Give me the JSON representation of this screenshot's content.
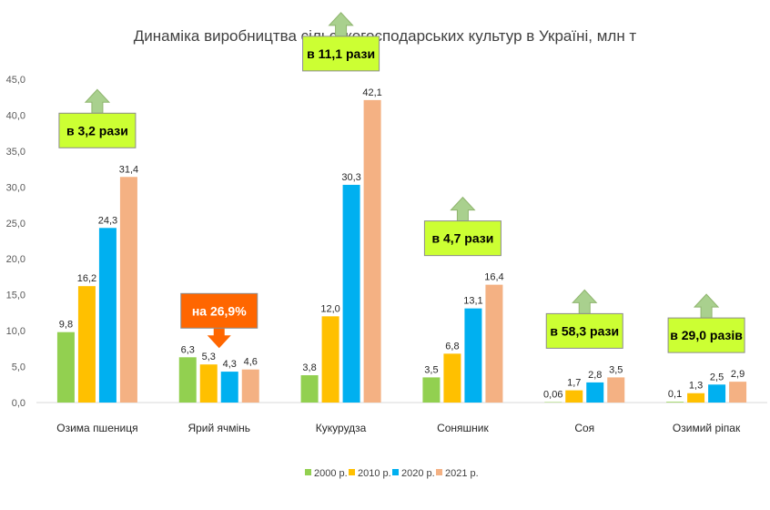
{
  "chart_data": {
    "type": "bar",
    "title": "Динаміка виробництва сільськогосподарських  культур в Україні, млн т",
    "categories": [
      "Озима пшениця",
      "Ярий ячмінь",
      "Кукурудза",
      "Соняшник",
      "Соя",
      "Озимий ріпак"
    ],
    "series": [
      {
        "name": "2000 р.",
        "color": "#92d050",
        "values": [
          9.8,
          6.3,
          3.8,
          3.5,
          0.06,
          0.1
        ],
        "labels": [
          "9,8",
          "6,3",
          "3,8",
          "3,5",
          "0,06",
          "0,1"
        ]
      },
      {
        "name": "2010 р.",
        "color": "#ffc000",
        "values": [
          16.2,
          5.3,
          12.0,
          6.8,
          1.7,
          1.3
        ],
        "labels": [
          "16,2",
          "5,3",
          "12,0",
          "6,8",
          "1,7",
          "1,3"
        ]
      },
      {
        "name": "2020 р.",
        "color": "#00b0f0",
        "values": [
          24.3,
          4.3,
          30.3,
          13.1,
          2.8,
          2.5
        ],
        "labels": [
          "24,3",
          "4,3",
          "30,3",
          "13,1",
          "2,8",
          "2,5"
        ]
      },
      {
        "name": "2021 р.",
        "color": "#f4b183",
        "values": [
          31.4,
          4.6,
          42.1,
          16.4,
          3.5,
          2.9
        ],
        "labels": [
          "31,4",
          "4,6",
          "42,1",
          "16,4",
          "3,5",
          "2,9"
        ]
      }
    ],
    "ylim": [
      0,
      45
    ],
    "yticks": [
      "0,0",
      "5,0",
      "10,0",
      "15,0",
      "20,0",
      "25,0",
      "30,0",
      "35,0",
      "40,0",
      "45,0"
    ],
    "grid": false,
    "legend": "bottom",
    "annotations": [
      {
        "text": "в 3,2 рази",
        "category": 0,
        "direction": "up",
        "fill": "#ccff33",
        "arrow": "#a9d08e",
        "color": "#000000"
      },
      {
        "text": "на 26,9%",
        "category": 1,
        "direction": "down",
        "fill": "#ff6600",
        "arrow": "#ff6600",
        "color": "#ffffff"
      },
      {
        "text": "в 11,1 рази",
        "category": 2,
        "direction": "up",
        "fill": "#ccff33",
        "arrow": "#a9d08e",
        "color": "#000000"
      },
      {
        "text": "в 4,7 рази",
        "category": 3,
        "direction": "up",
        "fill": "#ccff33",
        "arrow": "#a9d08e",
        "color": "#000000"
      },
      {
        "text": "в 58,3 рази",
        "category": 4,
        "direction": "up",
        "fill": "#ccff33",
        "arrow": "#a9d08e",
        "color": "#000000"
      },
      {
        "text": "в 29,0 разів",
        "category": 5,
        "direction": "up",
        "fill": "#ccff33",
        "arrow": "#a9d08e",
        "color": "#000000"
      }
    ]
  }
}
